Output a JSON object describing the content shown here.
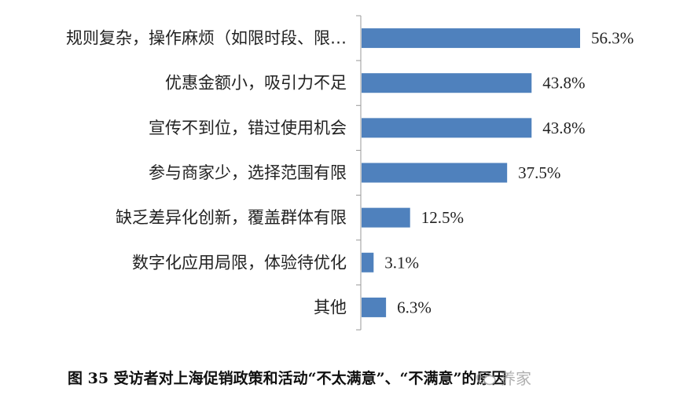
{
  "chart_data": {
    "type": "bar",
    "orientation": "horizontal",
    "categories": [
      "规则复杂，操作麻烦（如限时段、限…",
      "优惠金额小，吸引力不足",
      "宣传不到位，错过使用机会",
      "参与商家少，选择范围有限",
      "缺乏差异化创新，覆盖群体有限",
      "数字化应用局限，体验待优化",
      "其他"
    ],
    "values": [
      56.3,
      43.8,
      43.8,
      37.5,
      12.5,
      3.1,
      6.3
    ],
    "value_labels": [
      "56.3%",
      "43.8%",
      "43.8%",
      "37.5%",
      "12.5%",
      "3.1%",
      "6.3%"
    ],
    "xlim": [
      0,
      60
    ],
    "grid": false,
    "legend": "none",
    "bar_color": "#4f81bd"
  },
  "caption": "图 35  受访者对上海促销政策和活动“不太满意”、“不满意”的原因",
  "watermark": {
    "icon": "wechat-icon",
    "text": "养家"
  }
}
